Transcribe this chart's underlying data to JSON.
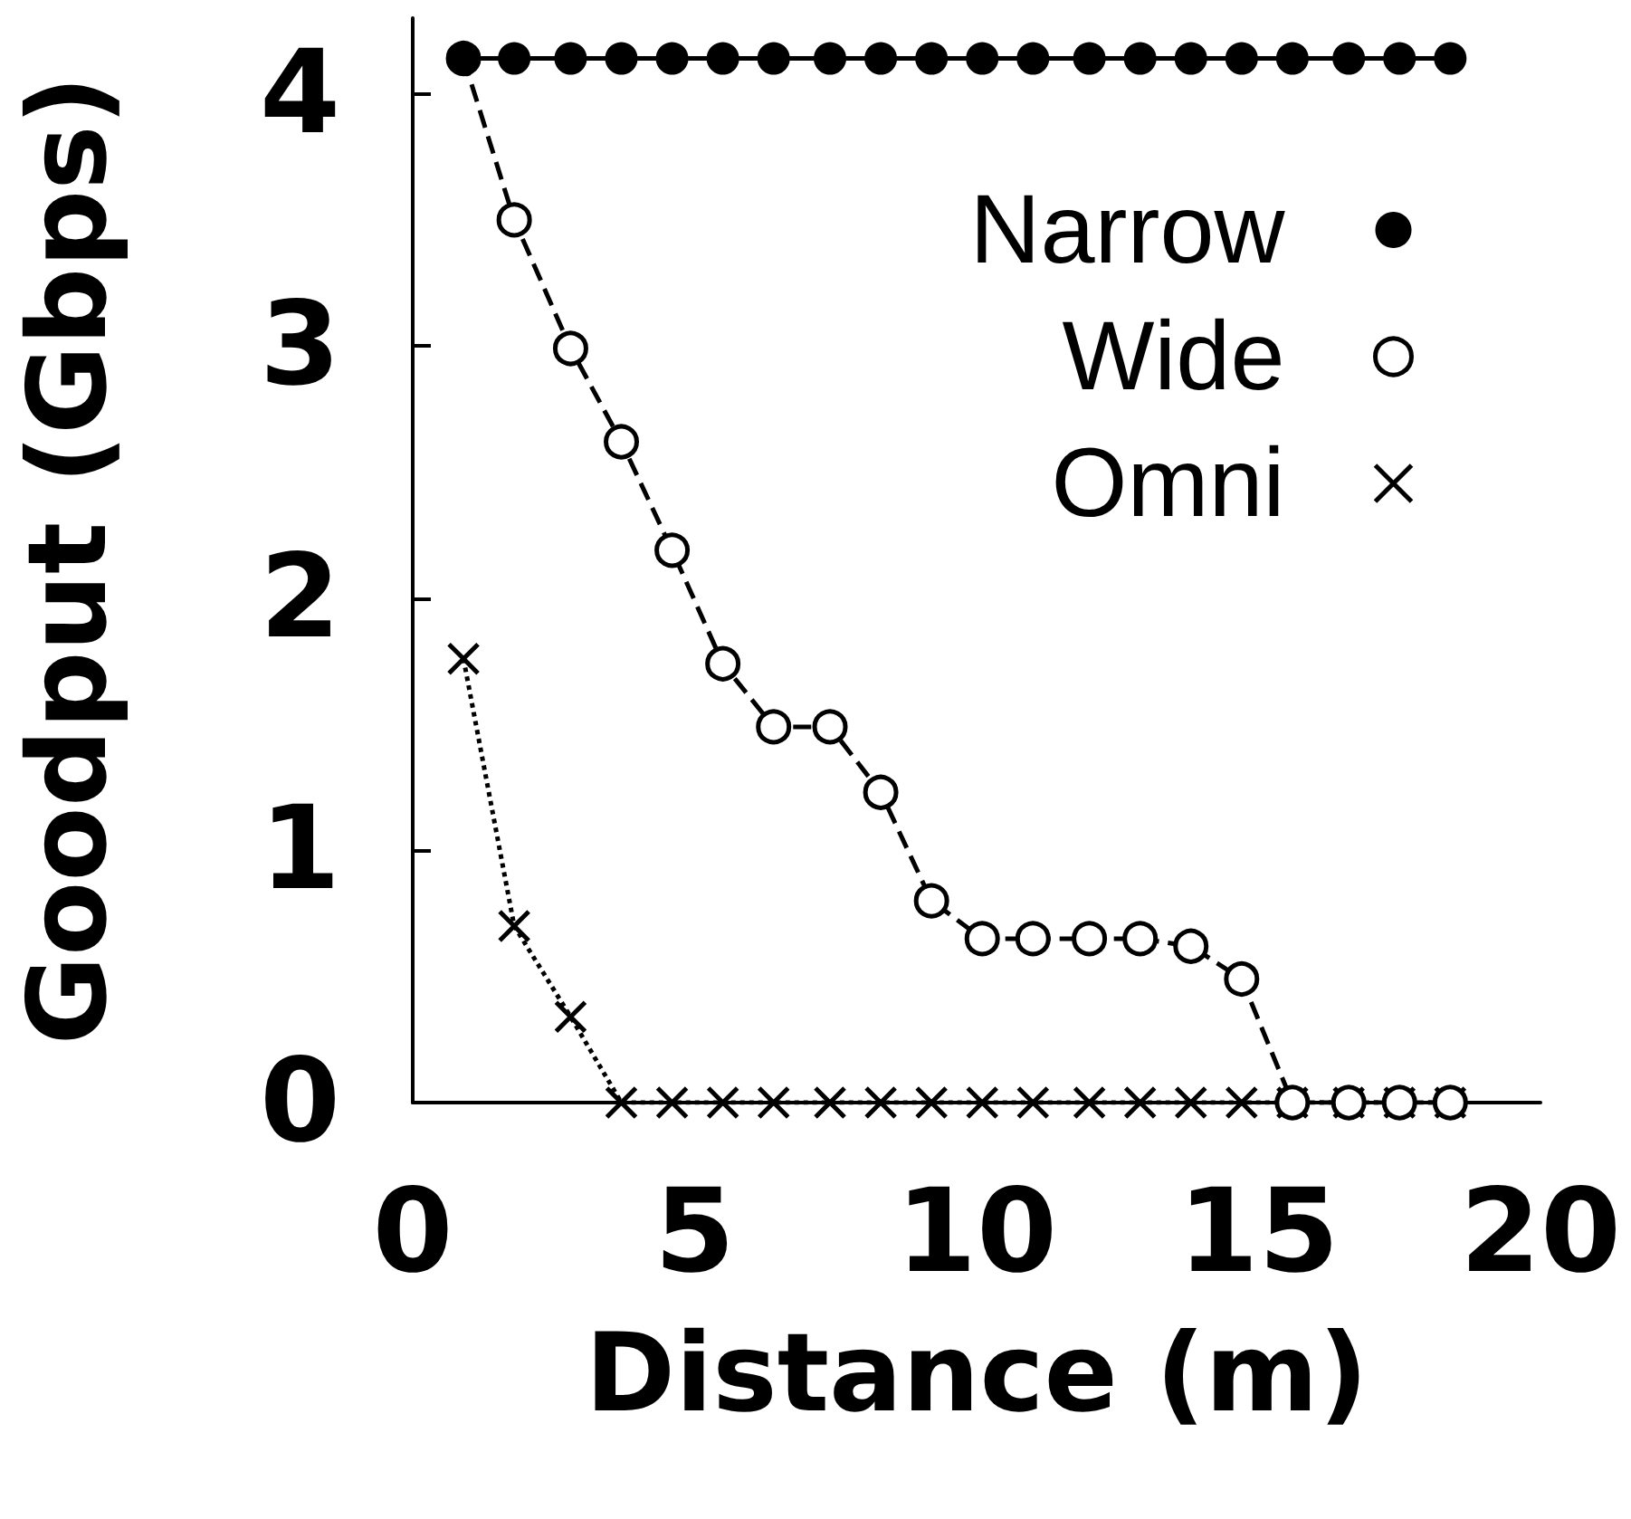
{
  "chart_data": {
    "type": "line",
    "xlabel": "Distance (m)",
    "ylabel": "Goodput (Gbps)",
    "x": [
      0.9,
      1.8,
      2.8,
      3.7,
      4.6,
      5.5,
      6.4,
      7.4,
      8.3,
      9.2,
      10.1,
      11,
      12,
      12.9,
      13.8,
      14.7,
      15.6,
      16.6,
      17.5,
      18.4
    ],
    "series": [
      {
        "name": "Narrow",
        "color": "#000000",
        "marker": "circle",
        "line_style": "solid",
        "values": [
          4.14,
          4.14,
          4.14,
          4.14,
          4.14,
          4.14,
          4.14,
          4.14,
          4.14,
          4.14,
          4.14,
          4.14,
          4.14,
          4.14,
          4.14,
          4.14,
          4.14,
          4.14,
          4.14,
          4.14
        ]
      },
      {
        "name": "Wide",
        "color": "#000000",
        "marker": "open_circle",
        "line_style": "dashed",
        "values": [
          4.14,
          3.5,
          2.99,
          2.62,
          2.19,
          1.74,
          1.49,
          1.49,
          1.23,
          0.8,
          0.65,
          0.65,
          0.65,
          0.65,
          0.62,
          0.49,
          0,
          0,
          0,
          0
        ]
      },
      {
        "name": "Omni",
        "color": "#000000",
        "marker": "cross",
        "line_style": "dotted",
        "values": [
          1.76,
          0.7,
          0.34,
          0,
          0,
          0,
          0,
          0,
          0,
          0,
          0,
          0,
          0,
          0,
          0,
          0,
          0,
          0,
          0,
          0
        ]
      }
    ],
    "xlim": [
      0,
      20
    ],
    "xticks": [
      0,
      5,
      10,
      15,
      20
    ],
    "ylim": [
      0,
      4.3
    ],
    "yticks": [
      0,
      1,
      2,
      3,
      4
    ],
    "grid": false,
    "legend": "top right"
  }
}
